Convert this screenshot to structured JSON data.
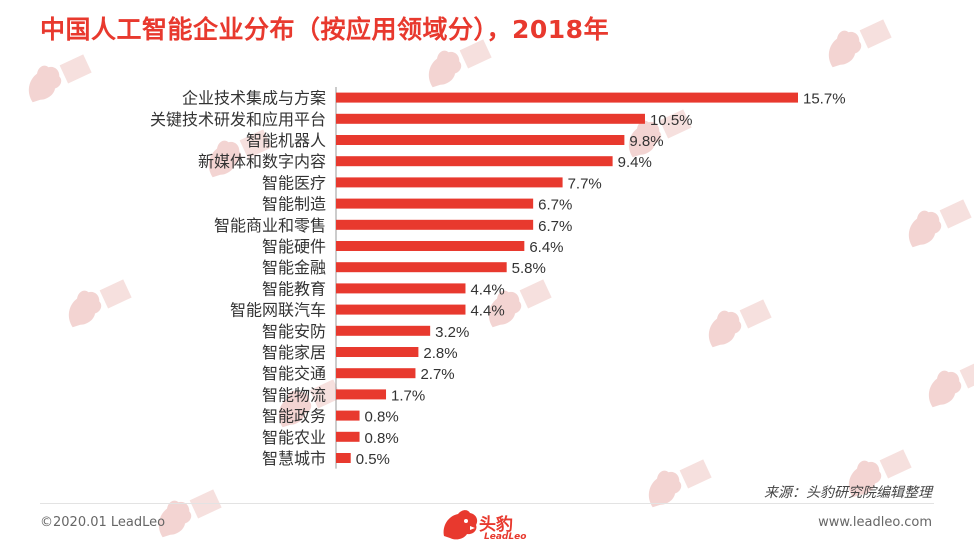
{
  "title": "中国人工智能企业分布（按应用领域分），2018年",
  "source": "来源：头豹研究院编辑整理",
  "footer": {
    "copyright": "©2020.01 LeadLeo",
    "website": "www.leadleo.com",
    "logo_text": "头豹",
    "logo_sub": "LeadLeo"
  },
  "colors": {
    "accent": "#e8392e",
    "bar": "#e8392e",
    "text": "#333333"
  },
  "chart_data": {
    "type": "bar",
    "orientation": "horizontal",
    "categories": [
      "企业技术集成与方案",
      "关键技术研发和应用平台",
      "智能机器人",
      "新媒体和数字内容",
      "智能医疗",
      "智能制造",
      "智能商业和零售",
      "智能硬件",
      "智能金融",
      "智能教育",
      "智能网联汽车",
      "智能安防",
      "智能家居",
      "智能交通",
      "智能物流",
      "智能政务",
      "智能农业",
      "智慧城市"
    ],
    "values": [
      15.7,
      10.5,
      9.8,
      9.4,
      7.7,
      6.7,
      6.7,
      6.4,
      5.8,
      4.4,
      4.4,
      3.2,
      2.8,
      2.7,
      1.7,
      0.8,
      0.8,
      0.5
    ],
    "data_labels": [
      "15.7%",
      "10.5%",
      "9.8%",
      "9.4%",
      "7.7%",
      "6.7%",
      "6.7%",
      "6.4%",
      "5.8%",
      "4.4%",
      "4.4%",
      "3.2%",
      "2.8%",
      "2.7%",
      "1.7%",
      "0.8%",
      "0.8%",
      "0.5%"
    ],
    "xlim": [
      0,
      15.7
    ],
    "grid": false,
    "legend": "none"
  }
}
